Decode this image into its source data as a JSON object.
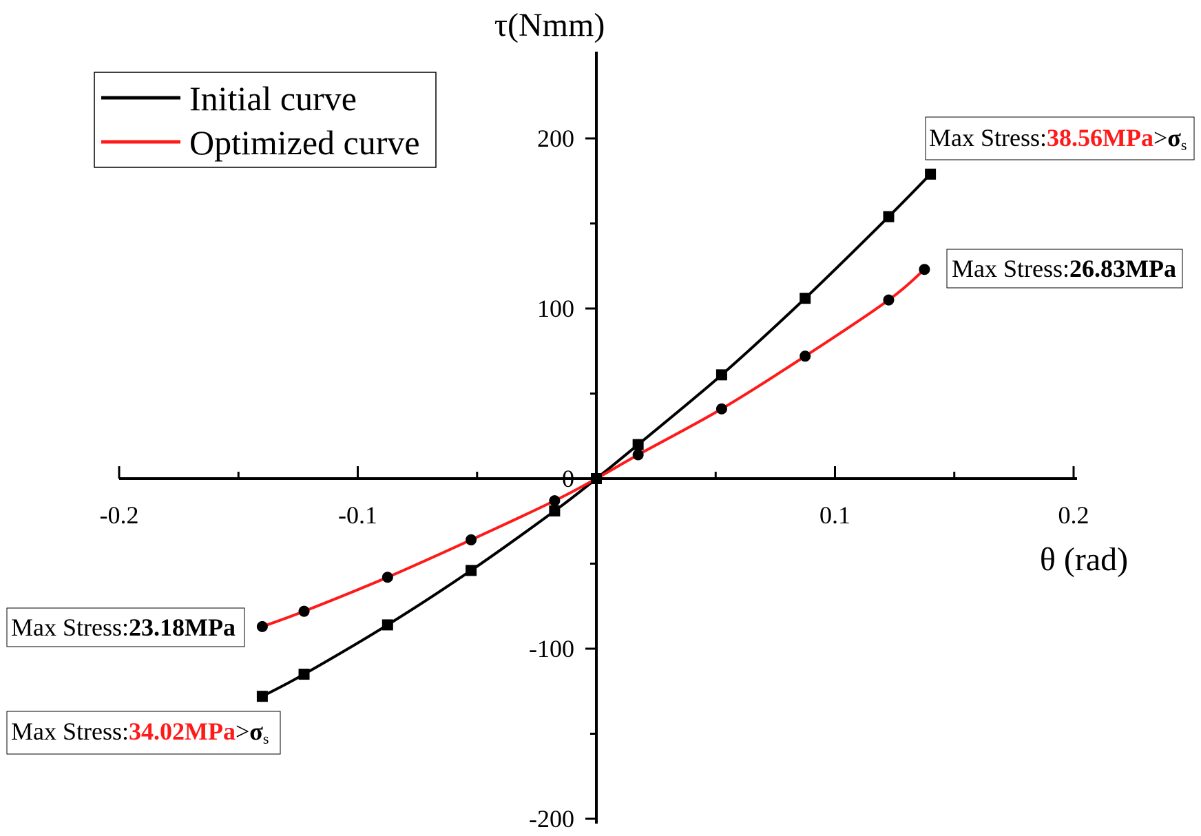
{
  "chart_data": {
    "type": "line",
    "title": "",
    "xlabel": "θ (rad)",
    "ylabel": "τ(Nmm)",
    "xlim": [
      -0.2,
      0.2
    ],
    "ylim": [
      -200,
      250
    ],
    "x_ticks": [
      -0.2,
      -0.1,
      0,
      0.1,
      0.2
    ],
    "x_tick_labels": [
      "-0.2",
      "-0.1",
      "0",
      "0.1",
      "0.2"
    ],
    "y_ticks": [
      -200,
      -100,
      0,
      100,
      200
    ],
    "y_tick_labels": [
      "-200",
      "-100",
      "0",
      "100",
      "200"
    ],
    "grid": false,
    "legend_position": "top-left",
    "series": [
      {
        "name": "Initial curve",
        "color": "#000000",
        "marker": "square",
        "x": [
          -0.14,
          -0.1225,
          -0.0875,
          -0.0525,
          -0.0175,
          0,
          0.0175,
          0.0525,
          0.0875,
          0.1225,
          0.14
        ],
        "y": [
          -128,
          -115,
          -86,
          -54,
          -19,
          0,
          20,
          61,
          106,
          154,
          179
        ]
      },
      {
        "name": "Optimized curve",
        "color": "#ff1a1a",
        "marker": "circle",
        "x": [
          -0.14,
          -0.1225,
          -0.0875,
          -0.0525,
          -0.0175,
          0,
          0.0175,
          0.0525,
          0.0875,
          0.1225,
          0.1375
        ],
        "y": [
          -87,
          -78,
          -58,
          -36,
          -13,
          0,
          14,
          41,
          72,
          105,
          123
        ]
      }
    ],
    "annotations": [
      {
        "prefix": "Max Stress:",
        "value": "38.56MPa",
        "value_color": "#ff1a1a",
        "suffix": ">",
        "sigma": "σ",
        "sub": "s"
      },
      {
        "prefix": "Max Stress:",
        "value": "26.83MPa",
        "value_color": "#000000"
      },
      {
        "prefix": "Max Stress:",
        "value": "23.18MPa",
        "value_color": "#000000"
      },
      {
        "prefix": "Max Stress:",
        "value": "34.02MPa",
        "value_color": "#ff1a1a",
        "suffix": ">",
        "sigma": "σ",
        "sub": "s"
      }
    ]
  }
}
